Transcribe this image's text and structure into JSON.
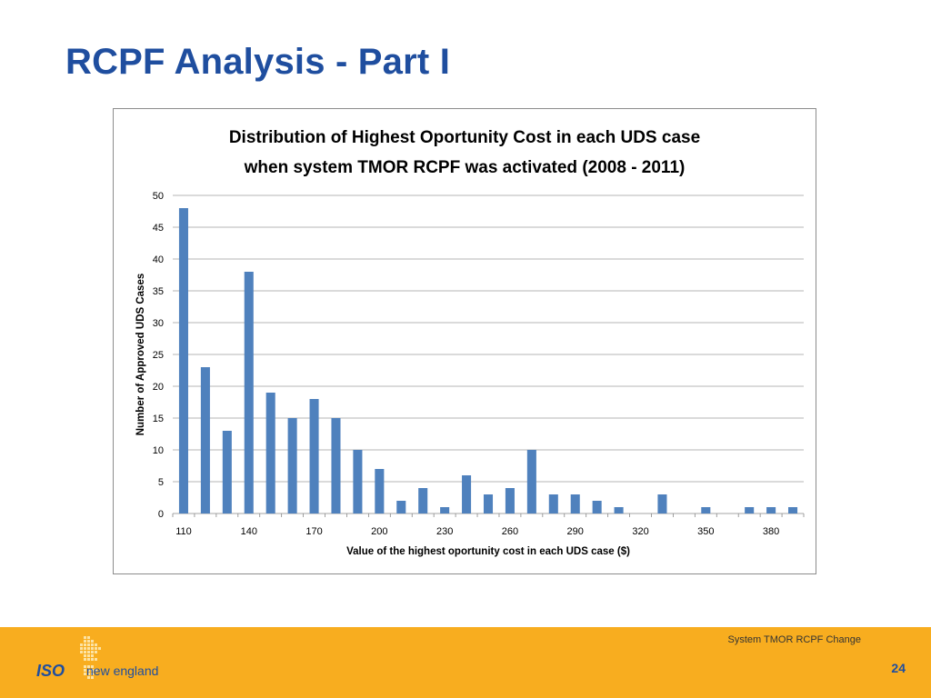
{
  "slide": {
    "title": "RCPF Analysis - Part I"
  },
  "footer": {
    "subtitle": "System TMOR RCPF Change",
    "page_number": "24",
    "logo_iso": "ISO",
    "logo_name": "new england"
  },
  "colors": {
    "title": "#1f4e9f",
    "bar": "#4f81bd",
    "footer_bg": "#f8ad1f"
  },
  "chart_data": {
    "type": "bar",
    "title_line1": "Distribution of Highest Oportunity Cost in each UDS case",
    "title_line2": "when system TMOR RCPF was activated (2008 - 2011)",
    "xlabel": "Value of the highest oportunity cost in each UDS case ($)",
    "ylabel": "Number of Approved UDS Cases",
    "ylim": [
      0,
      50
    ],
    "yticks": [
      0,
      5,
      10,
      15,
      20,
      25,
      30,
      35,
      40,
      45,
      50
    ],
    "grid": true,
    "categories": [
      110,
      120,
      130,
      140,
      150,
      160,
      170,
      180,
      190,
      200,
      210,
      220,
      230,
      240,
      250,
      260,
      270,
      280,
      290,
      300,
      310,
      320,
      330,
      340,
      350,
      360,
      370,
      380,
      390
    ],
    "xtick_labels": [
      "110",
      "140",
      "170",
      "200",
      "230",
      "260",
      "290",
      "320",
      "350",
      "380"
    ],
    "values": [
      48,
      23,
      13,
      38,
      19,
      15,
      18,
      15,
      10,
      7,
      2,
      4,
      1,
      6,
      3,
      4,
      10,
      3,
      3,
      2,
      1,
      0,
      3,
      0,
      1,
      0,
      1,
      1,
      1
    ]
  }
}
